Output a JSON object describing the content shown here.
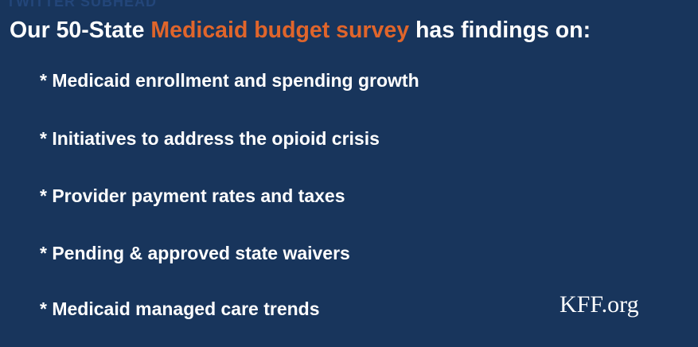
{
  "header": {
    "watermark": "TWITTER SUBHEAD",
    "title": {
      "before": "Our 50-State",
      "highlight": "Medicaid budget survey",
      "after": "has findings on:"
    }
  },
  "findings": [
    "* Medicaid enrollment and spending growth",
    "* Initiatives to address the opioid crisis",
    "* Provider payment rates and taxes",
    "* Pending & approved state waivers",
    "* Medicaid managed care trends"
  ],
  "footer": {
    "source": "KFF.org"
  }
}
